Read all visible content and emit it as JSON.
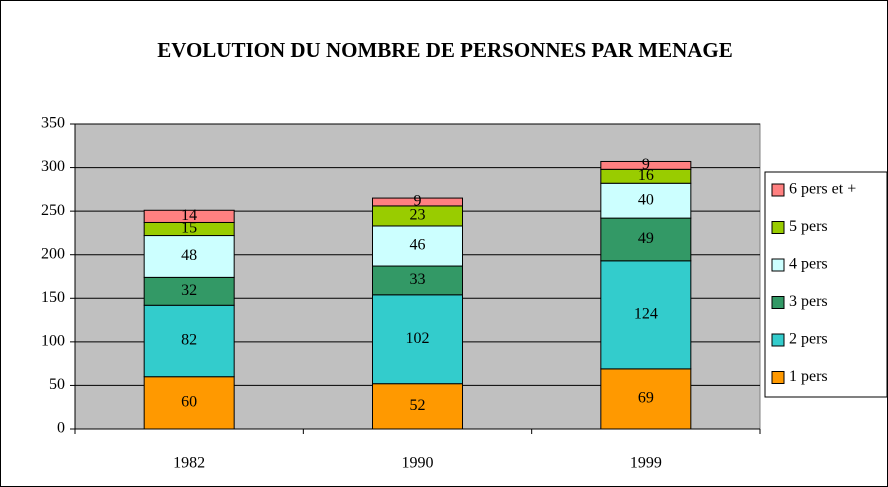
{
  "chart_data": {
    "type": "stacked_bar",
    "title": "EVOLUTION DU NOMBRE DE PERSONNES PAR MENAGE",
    "categories": [
      "1982",
      "1990",
      "1999"
    ],
    "series": [
      {
        "name": "1 pers",
        "color": "#ff9900",
        "values": [
          60,
          52,
          69
        ]
      },
      {
        "name": "2 pers",
        "color": "#33cccc",
        "values": [
          82,
          102,
          124
        ]
      },
      {
        "name": "3 pers",
        "color": "#339966",
        "values": [
          32,
          33,
          49
        ]
      },
      {
        "name": "4 pers",
        "color": "#ccffff",
        "values": [
          48,
          46,
          40
        ]
      },
      {
        "name": "5 pers",
        "color": "#99cc00",
        "values": [
          15,
          23,
          16
        ]
      },
      {
        "name": "6 pers et +",
        "color": "#ff8080",
        "values": [
          14,
          9,
          9
        ]
      }
    ],
    "ylim": [
      0,
      350
    ],
    "yticks": [
      0,
      50,
      100,
      150,
      200,
      250,
      300,
      350
    ],
    "grid": true,
    "legend": "right"
  }
}
